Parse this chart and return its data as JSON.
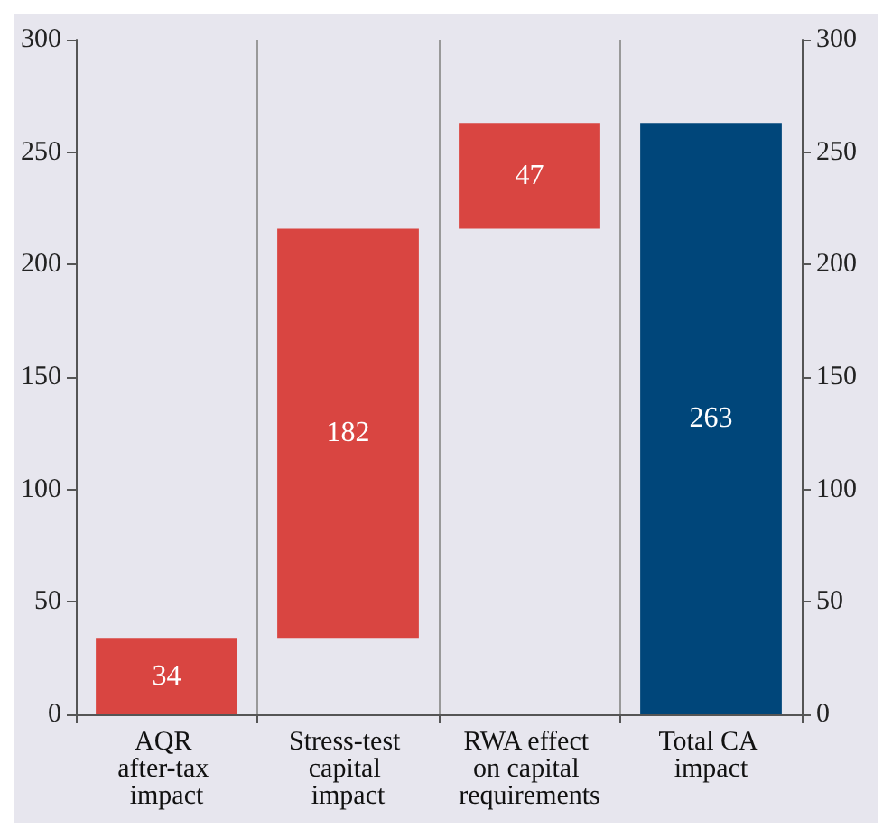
{
  "chart_data": {
    "type": "bar",
    "categories": [
      "AQR after-tax impact",
      "Stress-test capital impact",
      "RWA effect on capital requirements",
      "Total CA impact"
    ],
    "values": [
      34,
      182,
      47,
      263
    ],
    "base": [
      0,
      34,
      216,
      0
    ],
    "colors": [
      "#d94541",
      "#d94541",
      "#d94541",
      "#00467a"
    ],
    "data_labels": true,
    "ylim": [
      0,
      300
    ],
    "yticks": [
      0,
      50,
      100,
      150,
      200,
      250,
      300
    ],
    "y2lim": [
      0,
      300
    ],
    "y2ticks": [
      0,
      50,
      100,
      150,
      200,
      250,
      300
    ],
    "grid": "x"
  }
}
